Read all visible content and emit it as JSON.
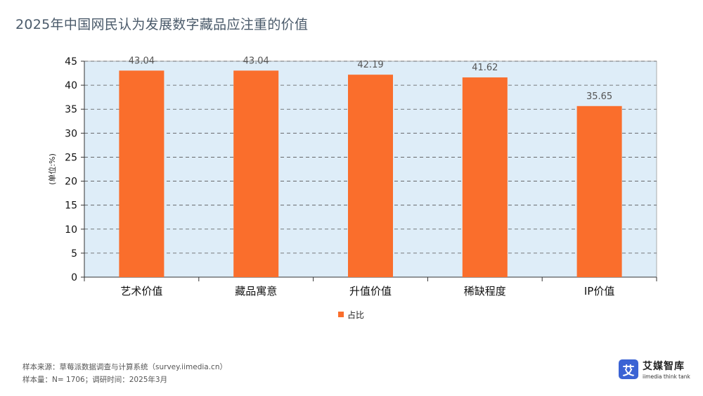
{
  "title": "2025年中国网民认为发展数字藏品应注重的价值",
  "chart_data": {
    "type": "bar",
    "categories": [
      "艺术价值",
      "藏品寓意",
      "升值价值",
      "稀缺程度",
      "IP价值"
    ],
    "series": [
      {
        "name": "占比",
        "values": [
          43.04,
          43.04,
          42.19,
          41.62,
          35.65
        ]
      }
    ],
    "data_labels": [
      "43.04",
      "43.04",
      "42.19",
      "41.62",
      "35.65"
    ],
    "ylabel": "(单位:%)",
    "xlabel": "",
    "ylim": [
      0,
      45
    ],
    "yticks": [
      0,
      5,
      10,
      15,
      20,
      25,
      30,
      35,
      40,
      45
    ],
    "grid": true,
    "legend_position": "bottom-center",
    "colors": {
      "bar": "#fa6e2c",
      "plot_bg": "#deedf8",
      "grid": "#555555"
    }
  },
  "footer": {
    "source": "样本来源：草莓派数据调查与计算系统（survey.iimedia.cn）",
    "sample": "样本量：N= 1706；调研时间：2025年3月"
  },
  "logo": {
    "mark": "艾",
    "name": "艾媒智库",
    "subtitle": "iimedia think tank"
  }
}
